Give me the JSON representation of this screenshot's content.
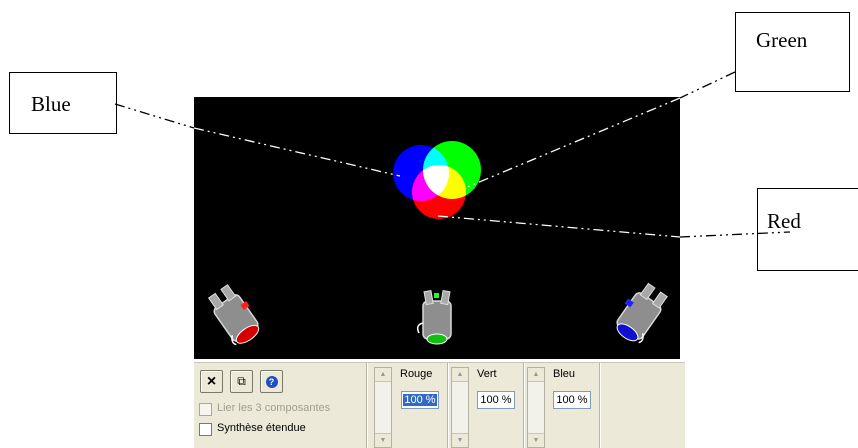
{
  "annotations": {
    "blue_label": "Blue",
    "green_label": "Green",
    "red_label": "Red"
  },
  "toolbar": {
    "close_icon": "×",
    "copy_icon": "⧉",
    "help_icon": "?"
  },
  "options": {
    "link_components_label": "Lier les 3 composantes",
    "link_components_checked": false,
    "link_components_enabled": false,
    "extended_synthesis_label": "Synthèse étendue",
    "extended_synthesis_checked": false
  },
  "sliders": [
    {
      "label": "Rouge",
      "value": "100 %",
      "color": "#ff0000"
    },
    {
      "label": "Vert",
      "value": "100 %",
      "color": "#00ff00"
    },
    {
      "label": "Bleu",
      "value": "100 %",
      "color": "#0000ff"
    }
  ],
  "colors": {
    "scene_background": "#000000",
    "red": "#ff0000",
    "green": "#00ff00",
    "blue": "#0000ff",
    "selection_highlight": "#316ac5"
  }
}
